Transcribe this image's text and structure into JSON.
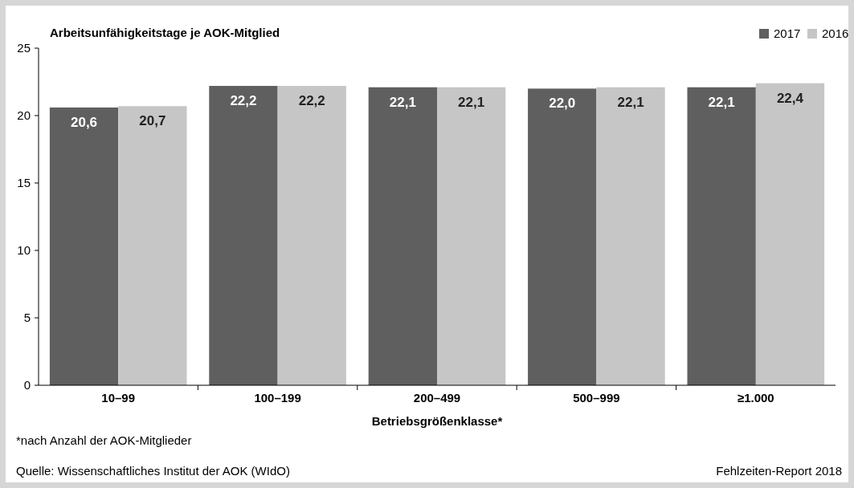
{
  "chart_data": {
    "type": "bar",
    "title": "Arbeitsunfähigkeitstage je AOK-Mitglied",
    "xlabel": "Betriebsgrößenklasse*",
    "categories": [
      "10–99",
      "100–199",
      "200–499",
      "500–999",
      "≥1.000"
    ],
    "series": [
      {
        "name": "2017",
        "color": "#5f5f5f",
        "values": [
          20.6,
          22.2,
          22.1,
          22.0,
          22.1
        ],
        "value_labels": [
          "20,6",
          "22,2",
          "22,1",
          "22,0",
          "22,1"
        ]
      },
      {
        "name": "2016",
        "color": "#c6c6c6",
        "values": [
          20.7,
          22.2,
          22.1,
          22.1,
          22.4
        ],
        "value_labels": [
          "20,7",
          "22,2",
          "22,1",
          "22,1",
          "22,4"
        ]
      }
    ],
    "ylim": [
      0,
      25
    ],
    "yticks": [
      0,
      5,
      10,
      15,
      20,
      25
    ],
    "grid": false,
    "legend": "top right",
    "annotations": [
      "*nach Anzahl der AOK-Mitglieder",
      "Quelle: Wissenschaftliches Institut der AOK (WIdO)",
      "Fehlzeiten-Report 2018"
    ]
  }
}
